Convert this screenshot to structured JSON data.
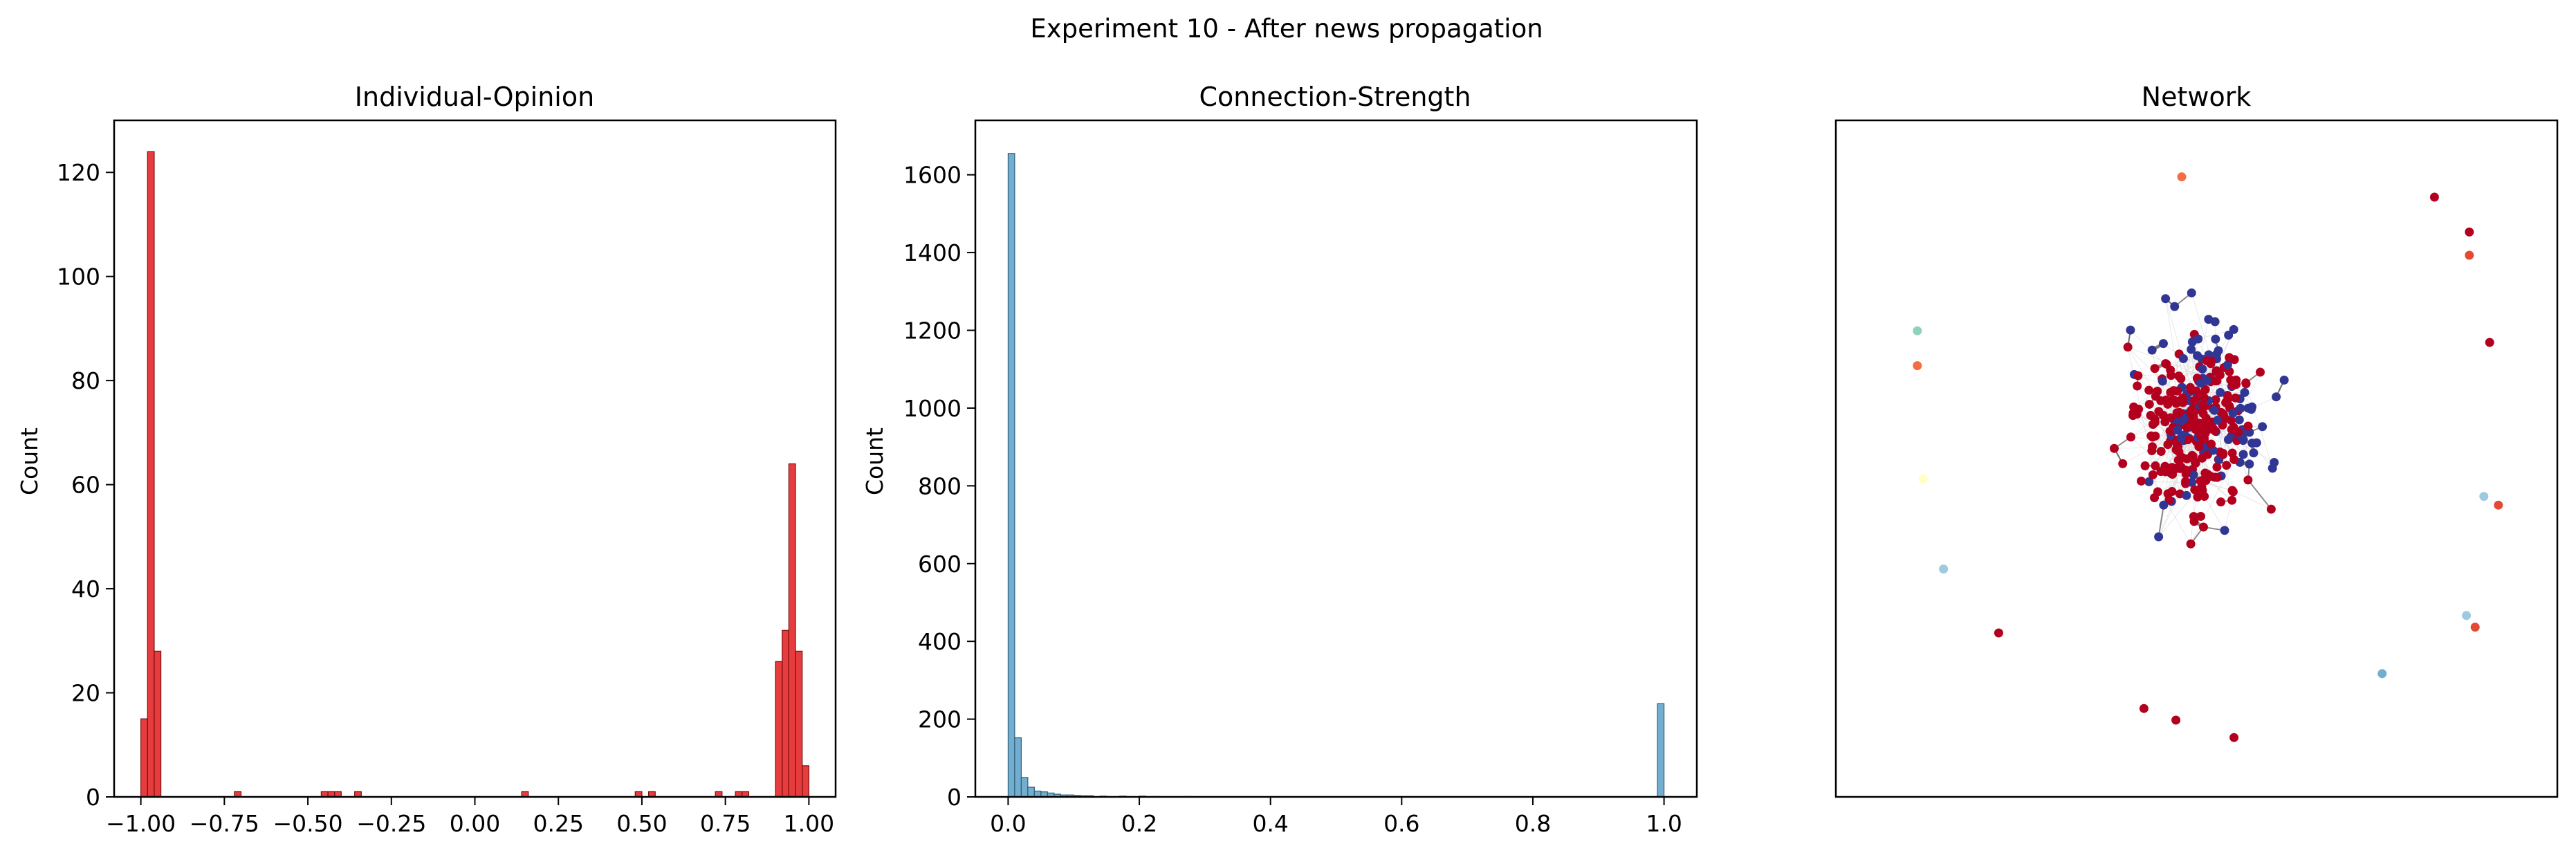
{
  "suptitle": "Experiment 10 - After news propagation",
  "chart_data": [
    {
      "type": "bar",
      "title": "Individual-Opinion",
      "xlabel": "",
      "ylabel": "Count",
      "xlim": [
        -1.08,
        1.08
      ],
      "ylim": [
        0,
        130
      ],
      "xticks": [
        -1.0,
        -0.75,
        -0.5,
        -0.25,
        0.0,
        0.25,
        0.5,
        0.75,
        1.0
      ],
      "xtick_labels": [
        "−1.00",
        "−0.75",
        "−0.50",
        "−0.25",
        "0.00",
        "0.25",
        "0.50",
        "0.75",
        "1.00"
      ],
      "yticks": [
        0,
        20,
        40,
        60,
        80,
        100,
        120
      ],
      "ytick_labels": [
        "0",
        "20",
        "40",
        "60",
        "80",
        "100",
        "120"
      ],
      "bin_width": 0.02,
      "color": "#e31a1c",
      "edge_color": "#7a0f10",
      "bins": [
        {
          "x": -1.0,
          "count": 15
        },
        {
          "x": -0.98,
          "count": 124
        },
        {
          "x": -0.96,
          "count": 28
        },
        {
          "x": -0.72,
          "count": 1
        },
        {
          "x": -0.46,
          "count": 1
        },
        {
          "x": -0.44,
          "count": 1
        },
        {
          "x": -0.42,
          "count": 1
        },
        {
          "x": -0.36,
          "count": 1
        },
        {
          "x": 0.14,
          "count": 1
        },
        {
          "x": 0.48,
          "count": 1
        },
        {
          "x": 0.52,
          "count": 1
        },
        {
          "x": 0.72,
          "count": 1
        },
        {
          "x": 0.78,
          "count": 1
        },
        {
          "x": 0.8,
          "count": 1
        },
        {
          "x": 0.9,
          "count": 26
        },
        {
          "x": 0.92,
          "count": 32
        },
        {
          "x": 0.94,
          "count": 64
        },
        {
          "x": 0.96,
          "count": 28
        },
        {
          "x": 0.98,
          "count": 6
        }
      ]
    },
    {
      "type": "bar",
      "title": "Connection-Strength",
      "xlabel": "",
      "ylabel": "Count",
      "xlim": [
        -0.05,
        1.05
      ],
      "ylim": [
        0,
        1740
      ],
      "xticks": [
        0.0,
        0.2,
        0.4,
        0.6,
        0.8,
        1.0
      ],
      "xtick_labels": [
        "0.0",
        "0.2",
        "0.4",
        "0.6",
        "0.8",
        "1.0"
      ],
      "yticks": [
        0,
        200,
        400,
        600,
        800,
        1000,
        1200,
        1400,
        1600
      ],
      "ytick_labels": [
        "0",
        "200",
        "400",
        "600",
        "800",
        "1000",
        "1200",
        "1400",
        "1600"
      ],
      "bin_width": 0.01,
      "color": "#5aa0c8",
      "edge_color": "#2f5f7a",
      "bins": [
        {
          "x": 0.0,
          "count": 1655
        },
        {
          "x": 0.01,
          "count": 152
        },
        {
          "x": 0.02,
          "count": 50
        },
        {
          "x": 0.03,
          "count": 25
        },
        {
          "x": 0.04,
          "count": 15
        },
        {
          "x": 0.05,
          "count": 13
        },
        {
          "x": 0.06,
          "count": 10
        },
        {
          "x": 0.07,
          "count": 7
        },
        {
          "x": 0.08,
          "count": 5
        },
        {
          "x": 0.09,
          "count": 5
        },
        {
          "x": 0.1,
          "count": 4
        },
        {
          "x": 0.11,
          "count": 3
        },
        {
          "x": 0.12,
          "count": 3
        },
        {
          "x": 0.14,
          "count": 2
        },
        {
          "x": 0.17,
          "count": 2
        },
        {
          "x": 0.2,
          "count": 2
        },
        {
          "x": 0.22,
          "count": 1
        },
        {
          "x": 0.27,
          "count": 1
        },
        {
          "x": 0.99,
          "count": 240
        }
      ]
    },
    {
      "type": "scatter",
      "title": "Network",
      "xlabel": "",
      "ylabel": "",
      "axes_visible": false,
      "seed": 10,
      "edge_color": "#666666",
      "faint_edge_color": "#d9d9d9",
      "node_colors": {
        "negative": "#b3001e",
        "positive": "#313695",
        "mid_red": "#e34a33",
        "orange": "#f46d43",
        "light_orange": "#fdae61",
        "pale_yellow": "#ffffbf",
        "teal": "#91cfbf",
        "light_blue": "#9ecae1",
        "sky": "#74add1"
      },
      "nodes": [
        {
          "x": -0.05,
          "y": 0.97,
          "color": "orange"
        },
        {
          "x": 0.82,
          "y": 0.9,
          "color": "negative"
        },
        {
          "x": 0.94,
          "y": 0.78,
          "color": "negative"
        },
        {
          "x": 0.94,
          "y": 0.7,
          "color": "mid_red"
        },
        {
          "x": -0.96,
          "y": 0.44,
          "color": "teal"
        },
        {
          "x": -0.96,
          "y": 0.32,
          "color": "orange"
        },
        {
          "x": 1.01,
          "y": 0.4,
          "color": "negative"
        },
        {
          "x": -0.94,
          "y": -0.07,
          "color": "pale_yellow"
        },
        {
          "x": 0.99,
          "y": -0.13,
          "color": "light_blue"
        },
        {
          "x": 1.04,
          "y": -0.16,
          "color": "mid_red"
        },
        {
          "x": -0.87,
          "y": -0.38,
          "color": "light_blue"
        },
        {
          "x": -0.68,
          "y": -0.6,
          "color": "negative"
        },
        {
          "x": 0.93,
          "y": -0.54,
          "color": "light_blue"
        },
        {
          "x": 0.96,
          "y": -0.58,
          "color": "mid_red"
        },
        {
          "x": 0.64,
          "y": -0.74,
          "color": "sky"
        },
        {
          "x": -0.07,
          "y": -0.9,
          "color": "negative"
        },
        {
          "x": -0.18,
          "y": -0.86,
          "color": "negative"
        },
        {
          "x": 0.13,
          "y": -0.96,
          "color": "negative"
        }
      ]
    }
  ]
}
